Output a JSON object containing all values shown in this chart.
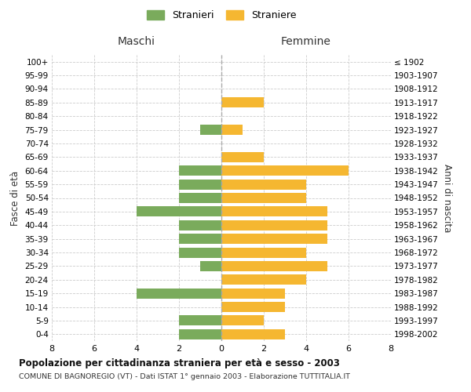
{
  "age_groups": [
    "0-4",
    "5-9",
    "10-14",
    "15-19",
    "20-24",
    "25-29",
    "30-34",
    "35-39",
    "40-44",
    "45-49",
    "50-54",
    "55-59",
    "60-64",
    "65-69",
    "70-74",
    "75-79",
    "80-84",
    "85-89",
    "90-94",
    "95-99",
    "100+"
  ],
  "birth_years": [
    "1998-2002",
    "1993-1997",
    "1988-1992",
    "1983-1987",
    "1978-1982",
    "1973-1977",
    "1968-1972",
    "1963-1967",
    "1958-1962",
    "1953-1957",
    "1948-1952",
    "1943-1947",
    "1938-1942",
    "1933-1937",
    "1928-1932",
    "1923-1927",
    "1918-1922",
    "1913-1917",
    "1908-1912",
    "1903-1907",
    "≤ 1902"
  ],
  "maschi": [
    2,
    2,
    0,
    4,
    0,
    1,
    2,
    2,
    2,
    4,
    2,
    2,
    2,
    0,
    0,
    1,
    0,
    0,
    0,
    0,
    0
  ],
  "femmine": [
    3,
    2,
    3,
    3,
    4,
    5,
    4,
    5,
    5,
    5,
    4,
    4,
    6,
    2,
    0,
    1,
    0,
    2,
    0,
    0,
    0
  ],
  "color_maschi": "#7aab5c",
  "color_femmine": "#f5b731",
  "title": "Popolazione per cittadinanza straniera per età e sesso - 2003",
  "subtitle": "COMUNE DI BAGNOREGIO (VT) - Dati ISTAT 1° gennaio 2003 - Elaborazione TUTTITALIA.IT",
  "header_left": "Maschi",
  "header_right": "Femmine",
  "ylabel_left": "Fasce di età",
  "ylabel_right": "Anni di nascita",
  "legend_maschi": "Stranieri",
  "legend_femmine": "Straniere",
  "xlim": 8,
  "background_color": "#ffffff",
  "grid_color": "#cccccc"
}
